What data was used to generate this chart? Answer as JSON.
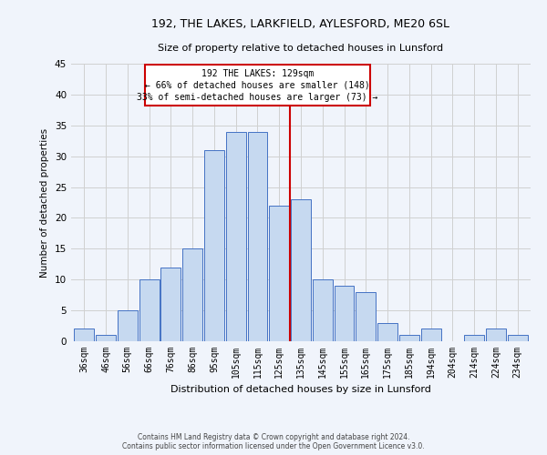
{
  "title": "192, THE LAKES, LARKFIELD, AYLESFORD, ME20 6SL",
  "subtitle": "Size of property relative to detached houses in Lunsford",
  "xlabel": "Distribution of detached houses by size in Lunsford",
  "ylabel": "Number of detached properties",
  "bar_labels": [
    "36sqm",
    "46sqm",
    "56sqm",
    "66sqm",
    "76sqm",
    "86sqm",
    "95sqm",
    "105sqm",
    "115sqm",
    "125sqm",
    "135sqm",
    "145sqm",
    "155sqm",
    "165sqm",
    "175sqm",
    "185sqm",
    "194sqm",
    "204sqm",
    "214sqm",
    "224sqm",
    "234sqm"
  ],
  "bar_heights": [
    2,
    1,
    5,
    10,
    12,
    15,
    31,
    34,
    34,
    22,
    23,
    10,
    9,
    8,
    3,
    1,
    2,
    0,
    1,
    2,
    1
  ],
  "bar_color": "#c6d9f0",
  "bar_edge_color": "#4472c4",
  "marker_line_color": "#cc0000",
  "annotation_line1": "192 THE LAKES: 129sqm",
  "annotation_line2": "← 66% of detached houses are smaller (148)",
  "annotation_line3": "33% of semi-detached houses are larger (73) →",
  "annotation_box_edge_color": "#cc0000",
  "ylim": [
    0,
    45
  ],
  "yticks": [
    0,
    5,
    10,
    15,
    20,
    25,
    30,
    35,
    40,
    45
  ],
  "footer_line1": "Contains HM Land Registry data © Crown copyright and database right 2024.",
  "footer_line2": "Contains public sector information licensed under the Open Government Licence v3.0.",
  "grid_color": "#d0d0d0",
  "background_color": "#f0f4fb"
}
